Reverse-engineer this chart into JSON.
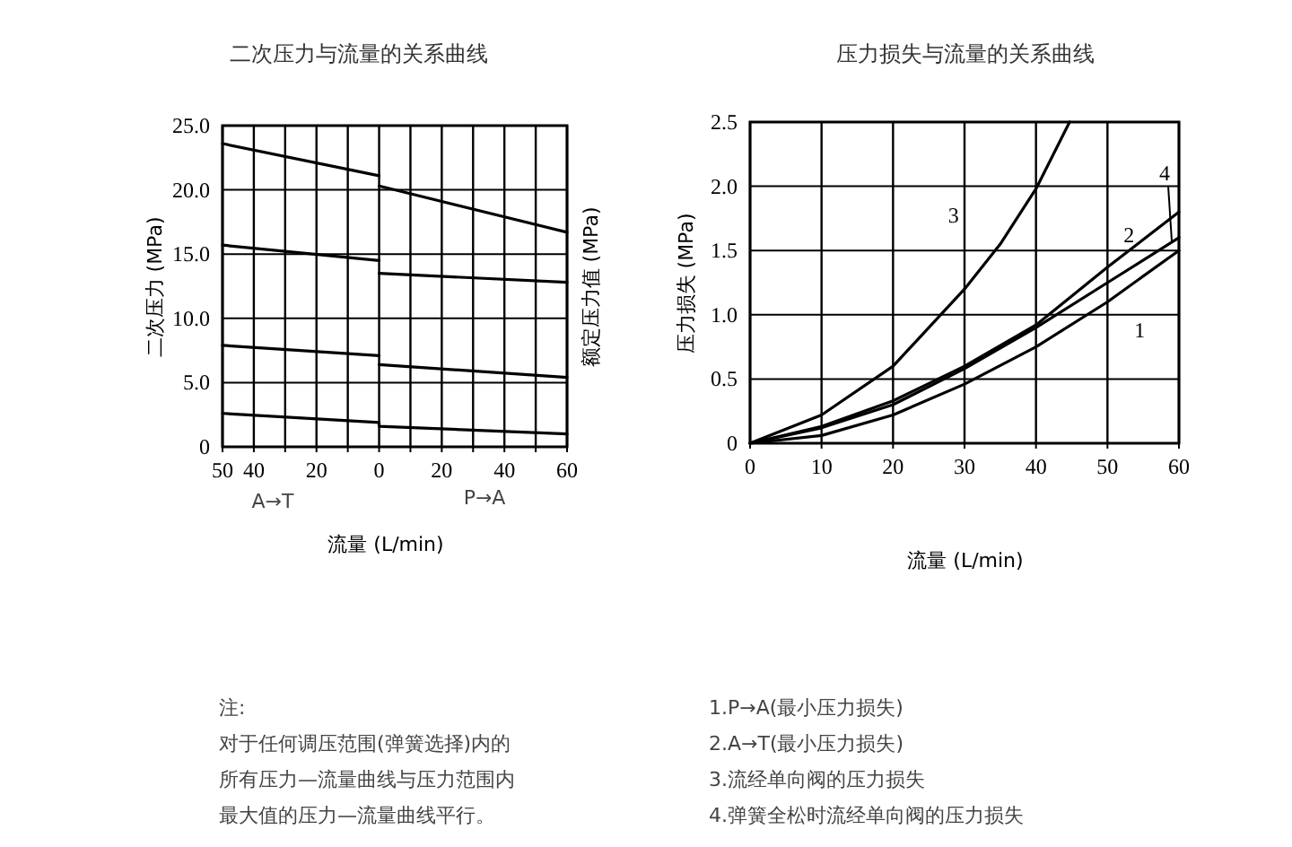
{
  "chart_data": [
    {
      "type": "line",
      "title": "二次压力与流量的关系曲线",
      "xlabel": "流量 (L/min)",
      "ylabel": "二次压力 (MPa)",
      "y2label": "额定压力值 (MPa)",
      "xlim": [
        -50,
        60
      ],
      "xticks": [
        {
          "value": -50,
          "label": "50"
        },
        {
          "value": -40,
          "label": "40"
        },
        {
          "value": -30,
          "label": null
        },
        {
          "value": -20,
          "label": "20"
        },
        {
          "value": -10,
          "label": null
        },
        0,
        {
          "value": 10,
          "label": null
        },
        20,
        {
          "value": 30,
          "label": null
        },
        40,
        {
          "value": 50,
          "label": null
        },
        60
      ],
      "ylim": [
        0,
        25
      ],
      "yticks": [
        {
          "value": 0,
          "label": "0"
        },
        {
          "value": 5,
          "label": "5.0"
        },
        {
          "value": 10,
          "label": "10.0"
        },
        {
          "value": 15,
          "label": "15.0"
        },
        {
          "value": 20,
          "label": "20.0"
        },
        {
          "value": 25,
          "label": "25.0"
        }
      ],
      "grid": true,
      "marker": "none",
      "line_style": "solid",
      "series": [
        {
          "color": "#000000",
          "x": [
            -50,
            0
          ],
          "values": [
            23.6,
            21.1
          ]
        },
        {
          "color": "#000000",
          "x": [
            -50,
            0
          ],
          "values": [
            15.7,
            14.5
          ]
        },
        {
          "color": "#000000",
          "x": [
            -50,
            0
          ],
          "values": [
            7.9,
            7.1
          ]
        },
        {
          "color": "#000000",
          "x": [
            -50,
            0,
            0,
            60
          ],
          "values": [
            2.6,
            1.9,
            1.6,
            1.0
          ]
        },
        {
          "color": "#000000",
          "x": [
            0,
            60
          ],
          "values": [
            20.3,
            16.7
          ]
        },
        {
          "color": "#000000",
          "x": [
            0,
            60
          ],
          "values": [
            13.5,
            12.8
          ]
        },
        {
          "color": "#000000",
          "x": [
            0,
            60
          ],
          "values": [
            6.4,
            5.4
          ]
        }
      ],
      "annotations": [
        "A→T",
        "P→A",
        "注:",
        "对于任何调压范围(弹簧选择)内的",
        "所有压力—流量曲线与压力范围内",
        "最大值的压力—流量曲线平行。"
      ]
    },
    {
      "type": "line",
      "title": "压力损失与流量的关系曲线",
      "xlabel": "流量 (L/min)",
      "ylabel": "压力损失 (MPa)",
      "xlim": [
        0,
        60
      ],
      "xticks": [
        0,
        10,
        20,
        30,
        40,
        50,
        60
      ],
      "ylim": [
        0,
        2.5
      ],
      "yticks": [
        {
          "value": 0,
          "label": "0"
        },
        0.5,
        {
          "value": 1,
          "label": "1.0"
        },
        1.5,
        {
          "value": 2,
          "label": "2.0"
        },
        2.5
      ],
      "grid": true,
      "marker": "none",
      "line_style": "solid",
      "series": [
        {
          "name": "1",
          "color": "#000000",
          "x": [
            0,
            10,
            20,
            30,
            40,
            50,
            60
          ],
          "values": [
            0,
            0.06,
            0.22,
            0.46,
            0.75,
            1.1,
            1.5
          ]
        },
        {
          "name": "2",
          "color": "#000000",
          "x": [
            0,
            10,
            20,
            30,
            40,
            50,
            60
          ],
          "values": [
            0,
            0.13,
            0.33,
            0.6,
            0.92,
            1.37,
            1.8
          ]
        },
        {
          "name": "3",
          "color": "#000000",
          "x": [
            0,
            10,
            20,
            30,
            35,
            40,
            44.7
          ],
          "values": [
            0,
            0.22,
            0.6,
            1.2,
            1.55,
            1.98,
            2.5
          ]
        },
        {
          "name": "4",
          "color": "#000000",
          "x": [
            0,
            10,
            20,
            30,
            40,
            50,
            60
          ],
          "values": [
            0,
            0.12,
            0.3,
            0.58,
            0.9,
            1.25,
            1.6
          ]
        }
      ],
      "annotations": [
        "1.P→A(最小压力损失)",
        "2.A→T(最小压力损失)",
        "3.流经单向阀的压力损失",
        "4.弹簧全松时流经单向阀的压力损失"
      ]
    }
  ]
}
